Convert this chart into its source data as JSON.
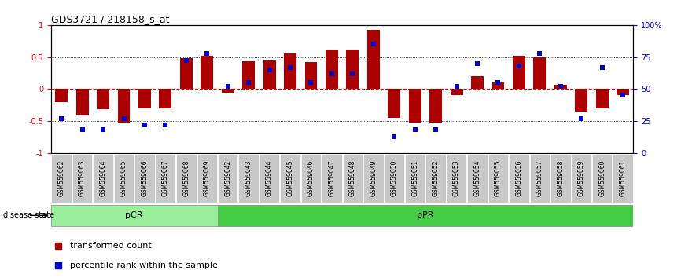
{
  "title": "GDS3721 / 218158_s_at",
  "samples": [
    "GSM559062",
    "GSM559063",
    "GSM559064",
    "GSM559065",
    "GSM559066",
    "GSM559067",
    "GSM559068",
    "GSM559069",
    "GSM559042",
    "GSM559043",
    "GSM559044",
    "GSM559045",
    "GSM559046",
    "GSM559047",
    "GSM559048",
    "GSM559049",
    "GSM559050",
    "GSM559051",
    "GSM559052",
    "GSM559053",
    "GSM559054",
    "GSM559055",
    "GSM559056",
    "GSM559057",
    "GSM559058",
    "GSM559059",
    "GSM559060",
    "GSM559061"
  ],
  "bar_values": [
    -0.2,
    -0.42,
    -0.32,
    -0.52,
    -0.3,
    -0.3,
    0.48,
    0.52,
    -0.06,
    0.43,
    0.44,
    0.55,
    0.42,
    0.6,
    0.6,
    0.92,
    -0.45,
    -0.52,
    -0.52,
    -0.1,
    0.2,
    0.1,
    0.52,
    0.5,
    0.07,
    -0.35,
    -0.3,
    -0.1
  ],
  "dot_values": [
    0.27,
    0.18,
    0.18,
    0.27,
    0.22,
    0.22,
    0.72,
    0.78,
    0.52,
    0.55,
    0.65,
    0.67,
    0.55,
    0.62,
    0.62,
    0.85,
    0.13,
    0.18,
    0.18,
    0.52,
    0.7,
    0.55,
    0.68,
    0.78,
    0.52,
    0.27,
    0.67,
    0.45
  ],
  "bar_color": "#AA0000",
  "dot_color": "#0000CC",
  "pcr_count": 8,
  "ppr_count": 20,
  "pcr_color": "#99EE99",
  "ppr_color": "#44CC44",
  "ylim": [
    -1.0,
    1.0
  ],
  "yticks_left": [
    -1,
    -0.5,
    0,
    0.5,
    1
  ],
  "ytick_left_labels": [
    "-1",
    "-0.5",
    "0",
    "0.5",
    "1"
  ],
  "yticks_right_pct": [
    0,
    25,
    50,
    75,
    100
  ],
  "ytick_right_labels": [
    "0",
    "25",
    "50",
    "75",
    "100%"
  ],
  "background_color": "#ffffff",
  "tick_bg_color": "#C8C8C8",
  "legend_bar_label": "transformed count",
  "legend_dot_label": "percentile rank within the sample",
  "disease_state_label": "disease state"
}
